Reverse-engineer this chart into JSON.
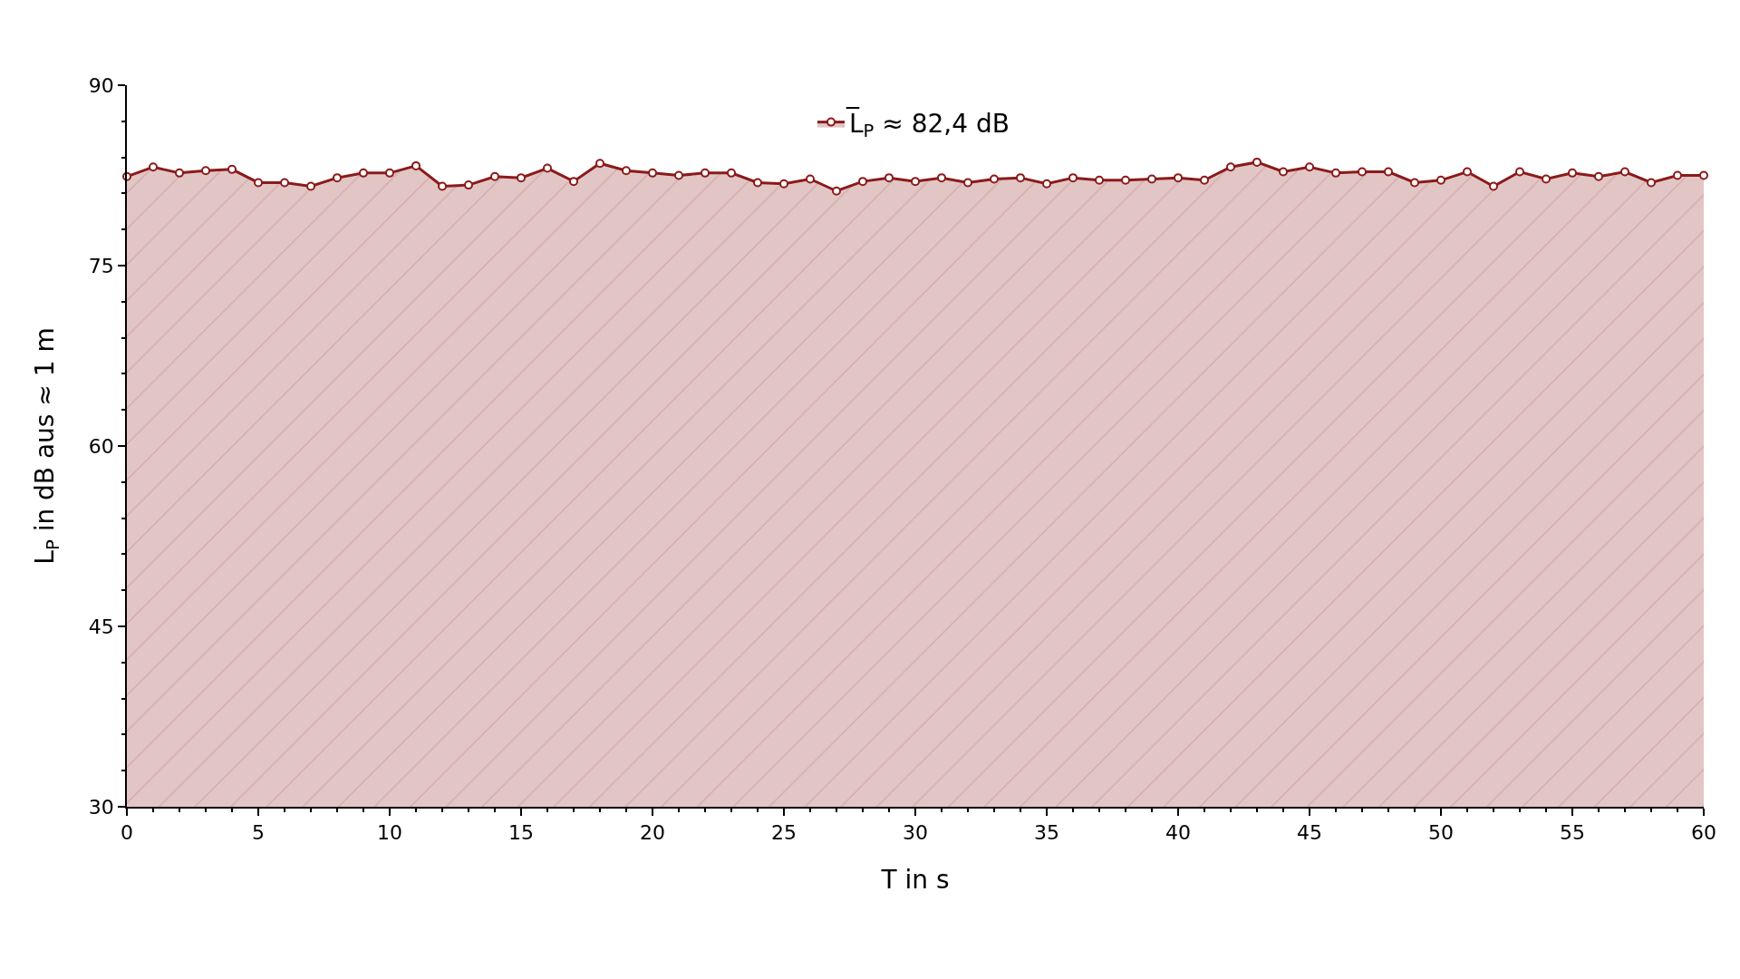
{
  "chart_data": {
    "type": "area",
    "xlabel": "T in s",
    "ylabel": "L$_{P}$ in dB aus ≈ 1 m",
    "x": [
      0,
      1,
      2,
      3,
      4,
      5,
      6,
      7,
      8,
      9,
      10,
      11,
      12,
      13,
      14,
      15,
      16,
      17,
      18,
      19,
      20,
      21,
      22,
      23,
      24,
      25,
      26,
      27,
      28,
      29,
      30,
      31,
      32,
      33,
      34,
      35,
      36,
      37,
      38,
      39,
      40,
      41,
      42,
      43,
      44,
      45,
      46,
      47,
      48,
      49,
      50,
      51,
      52,
      53,
      54,
      55,
      56,
      57,
      58,
      59,
      60
    ],
    "series": [
      {
        "name": "L̅$_{P}$ ≈ 82,4 dB",
        "color": "#8b1a1a",
        "values": [
          82.4,
          83.2,
          82.7,
          82.9,
          83.0,
          81.9,
          81.9,
          81.6,
          82.3,
          82.7,
          82.7,
          83.3,
          81.6,
          81.7,
          82.4,
          82.3,
          83.1,
          82.0,
          83.5,
          82.9,
          82.7,
          82.5,
          82.7,
          82.7,
          81.9,
          81.8,
          82.2,
          81.2,
          82.0,
          82.3,
          82.0,
          82.3,
          81.9,
          82.2,
          82.3,
          81.8,
          82.3,
          82.1,
          82.1,
          82.2,
          82.3,
          82.1,
          83.2,
          83.6,
          82.8,
          83.2,
          82.7,
          82.8,
          82.8,
          81.9,
          82.1,
          82.8,
          81.6,
          82.8,
          82.2,
          82.7,
          82.4,
          82.8,
          81.9,
          82.5,
          82.5
        ]
      }
    ],
    "xlim": [
      0,
      60
    ],
    "xticks": [
      0,
      {
        "value": 1,
        "label": null
      },
      {
        "value": 2,
        "label": null
      },
      {
        "value": 3,
        "label": null
      },
      {
        "value": 4,
        "label": null
      },
      5,
      {
        "value": 6,
        "label": null
      },
      {
        "value": 7,
        "label": null
      },
      {
        "value": 8,
        "label": null
      },
      {
        "value": 9,
        "label": null
      },
      10,
      {
        "value": 11,
        "label": null
      },
      {
        "value": 12,
        "label": null
      },
      {
        "value": 13,
        "label": null
      },
      {
        "value": 14,
        "label": null
      },
      15,
      {
        "value": 16,
        "label": null
      },
      {
        "value": 17,
        "label": null
      },
      {
        "value": 18,
        "label": null
      },
      {
        "value": 19,
        "label": null
      },
      20,
      {
        "value": 21,
        "label": null
      },
      {
        "value": 22,
        "label": null
      },
      {
        "value": 23,
        "label": null
      },
      {
        "value": 24,
        "label": null
      },
      25,
      {
        "value": 26,
        "label": null
      },
      {
        "value": 27,
        "label": null
      },
      {
        "value": 28,
        "label": null
      },
      {
        "value": 29,
        "label": null
      },
      30,
      {
        "value": 31,
        "label": null
      },
      {
        "value": 32,
        "label": null
      },
      {
        "value": 33,
        "label": null
      },
      {
        "value": 34,
        "label": null
      },
      35,
      {
        "value": 36,
        "label": null
      },
      {
        "value": 37,
        "label": null
      },
      {
        "value": 38,
        "label": null
      },
      {
        "value": 39,
        "label": null
      },
      40,
      {
        "value": 41,
        "label": null
      },
      {
        "value": 42,
        "label": null
      },
      {
        "value": 43,
        "label": null
      },
      {
        "value": 44,
        "label": null
      },
      45,
      {
        "value": 46,
        "label": null
      },
      {
        "value": 47,
        "label": null
      },
      {
        "value": 48,
        "label": null
      },
      {
        "value": 49,
        "label": null
      },
      50,
      {
        "value": 51,
        "label": null
      },
      {
        "value": 52,
        "label": null
      },
      {
        "value": 53,
        "label": null
      },
      {
        "value": 54,
        "label": null
      },
      55,
      {
        "value": 56,
        "label": null
      },
      {
        "value": 57,
        "label": null
      },
      {
        "value": 58,
        "label": null
      },
      {
        "value": 59,
        "label": null
      },
      60
    ],
    "ylim": [
      30,
      90
    ],
    "yticks": [
      30,
      {
        "value": 33,
        "label": null
      },
      {
        "value": 36,
        "label": null
      },
      {
        "value": 39,
        "label": null
      },
      {
        "value": 42,
        "label": null
      },
      45,
      {
        "value": 48,
        "label": null
      },
      {
        "value": 51,
        "label": null
      },
      {
        "value": 54,
        "label": null
      },
      {
        "value": 57,
        "label": null
      },
      60,
      {
        "value": 63,
        "label": null
      },
      {
        "value": 66,
        "label": null
      },
      {
        "value": 69,
        "label": null
      },
      {
        "value": 72,
        "label": null
      },
      75,
      {
        "value": 78,
        "label": null
      },
      {
        "value": 81,
        "label": null
      },
      {
        "value": 84,
        "label": null
      },
      {
        "value": 87,
        "label": null
      },
      90
    ],
    "marker": "circle",
    "line_style": "solid",
    "legend": "top"
  }
}
